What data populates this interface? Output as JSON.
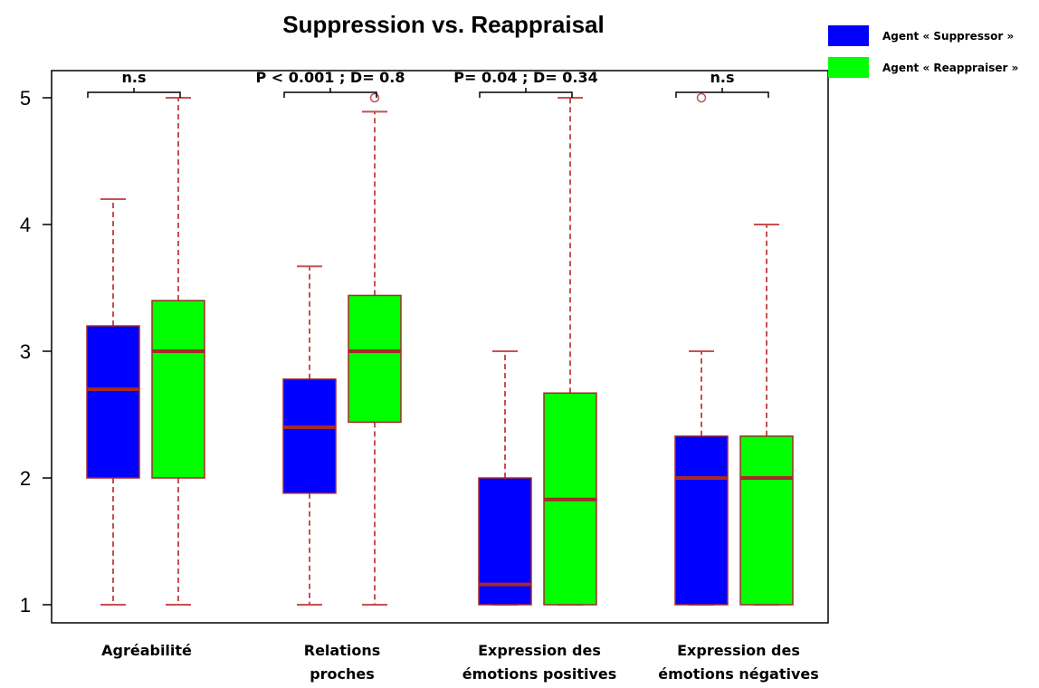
{
  "chart_data": {
    "type": "boxplot",
    "title": "Suppression vs. Reappraisal",
    "xlabel": "",
    "ylabel": "",
    "ylim": [
      1,
      5
    ],
    "yticks": [
      "1",
      "2",
      "3",
      "4",
      "5"
    ],
    "groups": [
      {
        "label_lines": [
          "Agréabilité"
        ],
        "significance": "n.s",
        "boxes": [
          {
            "series": "suppressor",
            "min": 1.0,
            "q1": 2.0,
            "median": 2.7,
            "q3": 3.2,
            "max": 4.2,
            "outliers": []
          },
          {
            "series": "reappraiser",
            "min": 1.0,
            "q1": 2.0,
            "median": 3.0,
            "q3": 3.4,
            "max": 5.0,
            "outliers": []
          }
        ]
      },
      {
        "label_lines": [
          "Relations",
          "proches"
        ],
        "significance": "P < 0.001 ;  D= 0.8",
        "boxes": [
          {
            "series": "suppressor",
            "min": 1.0,
            "q1": 1.88,
            "median": 2.4,
            "q3": 2.78,
            "max": 3.67,
            "outliers": []
          },
          {
            "series": "reappraiser",
            "min": 1.0,
            "q1": 2.44,
            "median": 3.0,
            "q3": 3.44,
            "max": 4.89,
            "outliers": [
              5.0
            ]
          }
        ]
      },
      {
        "label_lines": [
          "Expression des",
          "émotions positives"
        ],
        "significance": "P= 0.04 ; D= 0.34",
        "boxes": [
          {
            "series": "suppressor",
            "min": 1.0,
            "q1": 1.0,
            "median": 1.16,
            "q3": 2.0,
            "max": 3.0,
            "outliers": []
          },
          {
            "series": "reappraiser",
            "min": 1.0,
            "q1": 1.0,
            "median": 1.83,
            "q3": 2.67,
            "max": 5.0,
            "outliers": []
          }
        ]
      },
      {
        "label_lines": [
          "Expression des",
          "émotions négatives"
        ],
        "significance": "n.s",
        "boxes": [
          {
            "series": "suppressor",
            "min": 1.0,
            "q1": 1.0,
            "median": 2.0,
            "q3": 2.33,
            "max": 3.0,
            "outliers": [
              5.0
            ]
          },
          {
            "series": "reappraiser",
            "min": 1.0,
            "q1": 1.0,
            "median": 2.0,
            "q3": 2.33,
            "max": 4.0,
            "outliers": []
          }
        ]
      }
    ],
    "series": [
      {
        "key": "suppressor",
        "name": "Agent « Suppressor »",
        "color": "#0000ff"
      },
      {
        "key": "reappraiser",
        "name": "Agent « Reappraiser »",
        "color": "#00ff00"
      }
    ],
    "median_color": "#a52a2a",
    "whisker_color": "#c85050",
    "legend_position": "top-right",
    "grid": false
  }
}
